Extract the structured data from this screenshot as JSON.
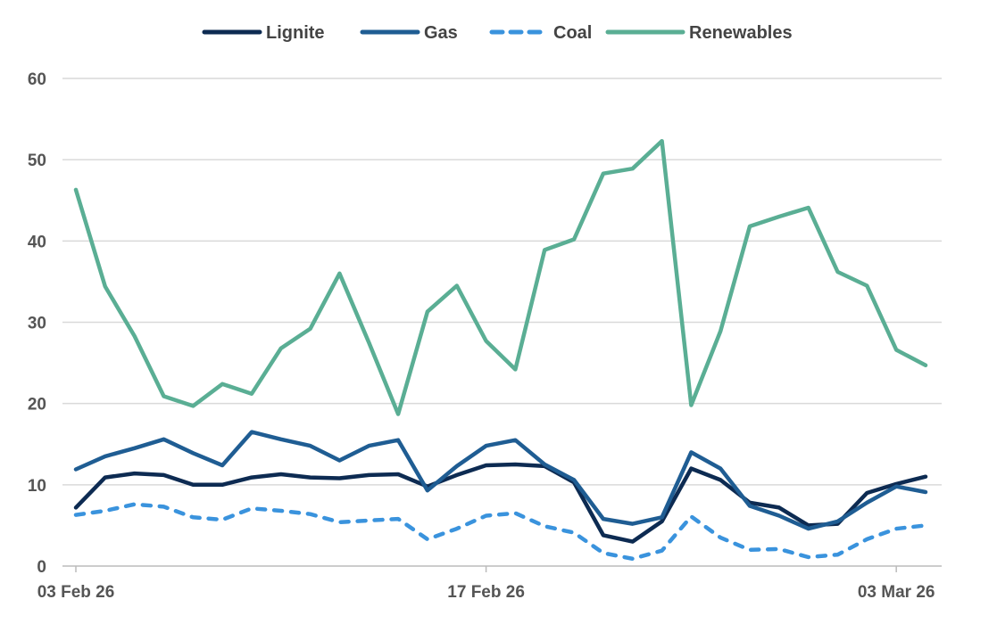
{
  "chart_data": {
    "type": "line",
    "title": "",
    "xlabel": "",
    "ylabel": "",
    "ylim": [
      0,
      60
    ],
    "yticks": [
      0,
      10,
      20,
      30,
      40,
      50,
      60
    ],
    "grid": true,
    "legend_position": "top",
    "x_start": "03 Feb 26",
    "x_tick_labels": [
      {
        "index": 0,
        "label": "03 Feb 26"
      },
      {
        "index": 14,
        "label": "17 Feb 26"
      },
      {
        "index": 28,
        "label": "03 Mar 26"
      }
    ],
    "series": [
      {
        "name": "Lignite",
        "color": "#0d2b52",
        "dash": false,
        "values": [
          7.2,
          10.9,
          11.4,
          11.2,
          10.0,
          10.0,
          10.9,
          11.3,
          10.9,
          10.8,
          11.2,
          11.3,
          9.8,
          11.2,
          12.4,
          12.5,
          12.3,
          10.3,
          3.8,
          3.0,
          5.5,
          12.0,
          10.6,
          7.8,
          7.2,
          5.0,
          5.2,
          9.0,
          10.1,
          11.0
        ]
      },
      {
        "name": "Gas",
        "color": "#1f5d93",
        "dash": false,
        "values": [
          11.9,
          13.5,
          14.5,
          15.6,
          13.9,
          12.4,
          16.5,
          15.6,
          14.8,
          13.0,
          14.8,
          15.5,
          9.3,
          12.3,
          14.8,
          15.5,
          12.5,
          10.6,
          5.8,
          5.2,
          6.0,
          14.0,
          12.0,
          7.4,
          6.2,
          4.6,
          5.5,
          7.8,
          9.8,
          9.1
        ]
      },
      {
        "name": "Coal",
        "color": "#3a93dd",
        "dash": true,
        "values": [
          6.3,
          6.8,
          7.6,
          7.3,
          6.0,
          5.7,
          7.1,
          6.8,
          6.4,
          5.4,
          5.6,
          5.8,
          3.3,
          4.6,
          6.2,
          6.5,
          4.9,
          4.1,
          1.6,
          0.9,
          1.9,
          6.1,
          3.5,
          2.0,
          2.1,
          1.1,
          1.4,
          3.3,
          4.6,
          5.0
        ]
      },
      {
        "name": "Renewables",
        "color": "#5aae94",
        "dash": false,
        "values": [
          46.3,
          34.4,
          28.3,
          20.9,
          19.7,
          22.4,
          21.2,
          26.8,
          29.2,
          36.0,
          27.5,
          18.7,
          31.3,
          34.5,
          27.7,
          24.2,
          38.9,
          40.2,
          48.3,
          48.9,
          52.3,
          19.8,
          28.9,
          41.8,
          43.0,
          44.1,
          36.2,
          34.5,
          26.6,
          24.7
        ]
      }
    ]
  }
}
